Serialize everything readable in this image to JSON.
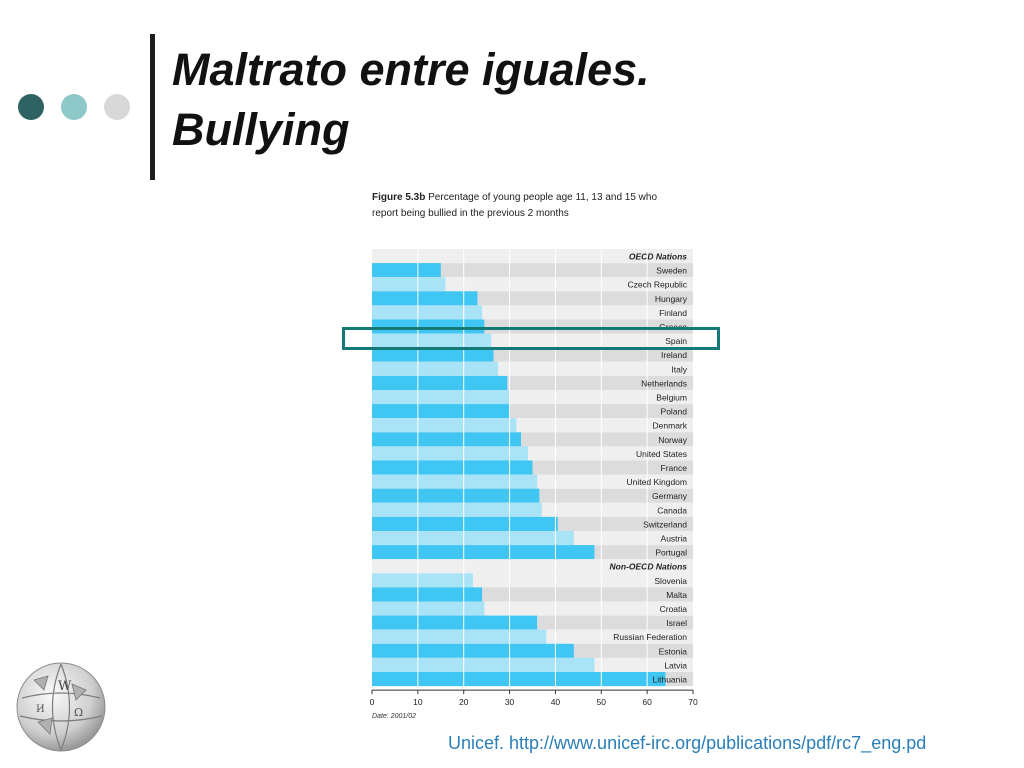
{
  "slide": {
    "title_line1": "Maltrato entre iguales.",
    "title_line2": "Bullying",
    "source": "Unicef. http://www.unicef-irc.org/publications/pdf/rc7_eng.pd"
  },
  "figure": {
    "label": "Figure 5.3b",
    "caption": "Percentage of young people age 11, 13 and 15 who report being bullied in the previous 2 months"
  },
  "colors": {
    "bar_dark": "#3fc6f2",
    "bar_light": "#a9e3f8",
    "row_light": "#efefef",
    "row_dark": "#dcdcdc",
    "highlight": "#157a77",
    "dot_dark": "#2f6262",
    "dot_mid": "#8fc8c8",
    "dot_light": "#d8d8d8"
  },
  "chart_data": {
    "type": "bar",
    "orientation": "horizontal",
    "xlim": [
      0,
      70
    ],
    "xticks": [
      0,
      10,
      20,
      30,
      40,
      50,
      60,
      70
    ],
    "grid": true,
    "date_note": "Date: 2001/02",
    "highlighted_category": "Spain",
    "groups": [
      {
        "name": "OECD Nations",
        "categories": [
          "Sweden",
          "Czech Republic",
          "Hungary",
          "Finland",
          "Greece",
          "Spain",
          "Ireland",
          "Italy",
          "Netherlands",
          "Belgium",
          "Poland",
          "Denmark",
          "Norway",
          "United States",
          "France",
          "United Kingdom",
          "Germany",
          "Canada",
          "Switzerland",
          "Austria",
          "Portugal"
        ],
        "values": [
          15,
          16,
          23,
          24,
          24.5,
          26,
          26.5,
          27.5,
          29.5,
          30,
          30,
          31.5,
          32.5,
          34,
          35,
          36,
          36.5,
          37,
          40.5,
          44,
          48.5
        ]
      },
      {
        "name": "Non-OECD Nations",
        "categories": [
          "Slovenia",
          "Malta",
          "Croatia",
          "Israel",
          "Russian Federation",
          "Estonia",
          "Latvia",
          "Lithuania"
        ],
        "values": [
          22,
          24,
          24.5,
          36,
          38,
          44,
          48.5,
          64
        ]
      }
    ]
  }
}
